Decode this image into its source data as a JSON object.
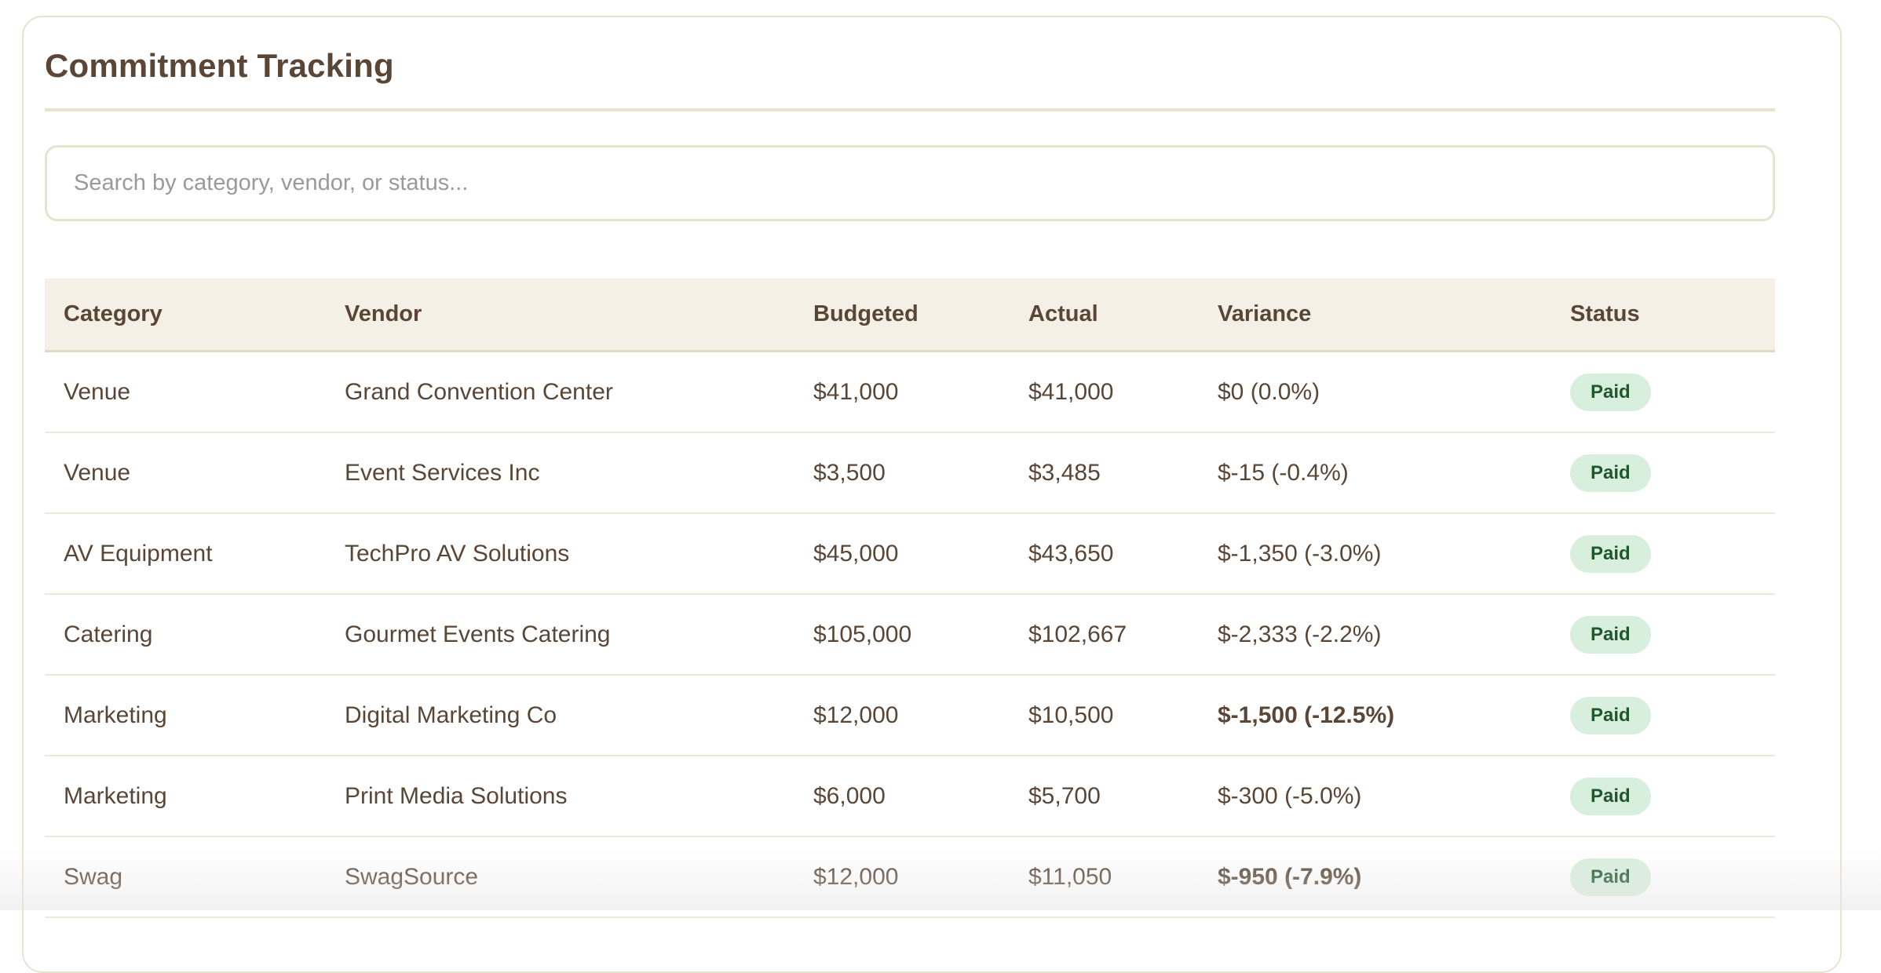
{
  "header": {
    "title": "Commitment Tracking"
  },
  "search": {
    "placeholder": "Search by category, vendor, or status...",
    "value": ""
  },
  "table": {
    "columns": [
      "Category",
      "Vendor",
      "Budgeted",
      "Actual",
      "Variance",
      "Status"
    ],
    "rows": [
      {
        "category": "Venue",
        "vendor": "Grand Convention Center",
        "budgeted": "$41,000",
        "actual": "$41,000",
        "variance": "$0 (0.0%)",
        "over": false,
        "status": "Paid"
      },
      {
        "category": "Venue",
        "vendor": "Event Services Inc",
        "budgeted": "$3,500",
        "actual": "$3,485",
        "variance": "$-15 (-0.4%)",
        "over": false,
        "status": "Paid"
      },
      {
        "category": "AV Equipment",
        "vendor": "TechPro AV Solutions",
        "budgeted": "$45,000",
        "actual": "$43,650",
        "variance": "$-1,350 (-3.0%)",
        "over": false,
        "status": "Paid"
      },
      {
        "category": "Catering",
        "vendor": "Gourmet Events Catering",
        "budgeted": "$105,000",
        "actual": "$102,667",
        "variance": "$-2,333 (-2.2%)",
        "over": false,
        "status": "Paid"
      },
      {
        "category": "Marketing",
        "vendor": "Digital Marketing Co",
        "budgeted": "$12,000",
        "actual": "$10,500",
        "variance": "$-1,500 (-12.5%)",
        "over": true,
        "status": "Paid"
      },
      {
        "category": "Marketing",
        "vendor": "Print Media Solutions",
        "budgeted": "$6,000",
        "actual": "$5,700",
        "variance": "$-300 (-5.0%)",
        "over": false,
        "status": "Paid"
      },
      {
        "category": "Swag",
        "vendor": "SwagSource",
        "budgeted": "$12,000",
        "actual": "$11,050",
        "variance": "$-950 (-7.9%)",
        "over": true,
        "status": "Paid"
      }
    ]
  },
  "colors": {
    "text": "#5a4636",
    "highlight_variance": "#d0334a",
    "badge_bg": "#d9efdd",
    "badge_text": "#21572f",
    "border": "#e8e3cf"
  }
}
